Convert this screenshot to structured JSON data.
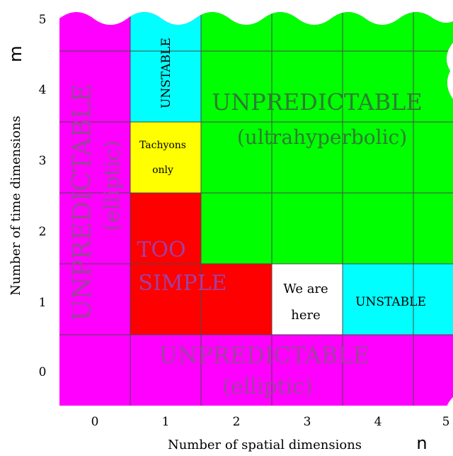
{
  "axes": {
    "x_label": "Number of spatial dimensions",
    "x_symbol": "n",
    "y_label": "Number of time dimensions",
    "y_symbol": "m",
    "x_ticks": [
      "0",
      "1",
      "2",
      "3",
      "4",
      "5"
    ],
    "y_ticks": [
      "0",
      "1",
      "2",
      "3",
      "4",
      "5"
    ]
  },
  "colors": {
    "magenta": "#ff00ff",
    "cyan": "#00ffff",
    "green": "#00ff00",
    "yellow": "#ffff00",
    "red": "#ff0000",
    "white": "#ffffff",
    "grid": "#555555",
    "label_purple": "#a040a0",
    "label_green": "#2e7d32"
  },
  "regions": {
    "left_elliptic": {
      "title": "UNPREDICTABLE",
      "subtitle": "(elliptic)"
    },
    "bottom_elliptic": {
      "title": "UNPREDICTABLE",
      "subtitle": "(elliptic)"
    },
    "ultrahyperbolic": {
      "title": "UNPREDICTABLE",
      "subtitle": "(ultrahyperbolic)"
    },
    "unstable_top": {
      "label": "UNSTABLE"
    },
    "unstable_right": {
      "label": "UNSTABLE"
    },
    "tachyons": {
      "line1": "Tachyons",
      "line2": "only"
    },
    "too_simple": {
      "line1": "TOO",
      "line2": "SIMPLE"
    },
    "we_are_here": {
      "line1": "We are",
      "line2": "here"
    }
  }
}
